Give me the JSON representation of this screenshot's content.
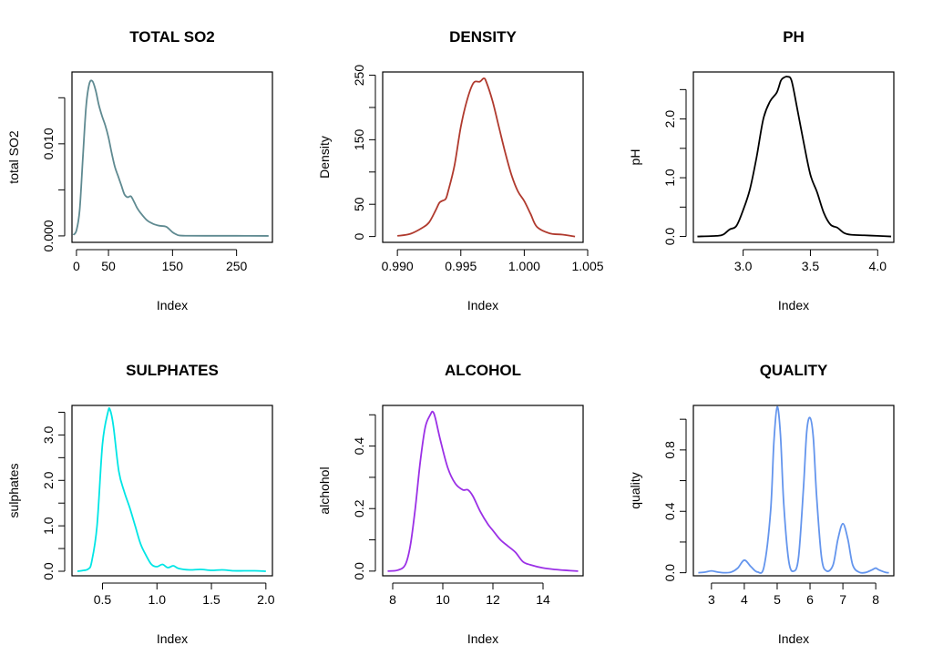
{
  "chart_data": [
    {
      "type": "line",
      "title": "TOTAL SO2",
      "xlabel": "Index",
      "ylabel": "total SO2",
      "color": "#5f8a91",
      "xlim": [
        -7,
        306
      ],
      "ylim": [
        -0.0007,
        0.0178
      ],
      "xticks": [
        0,
        50,
        150,
        250
      ],
      "xtick_labels": [
        "0",
        "50",
        "150",
        "250"
      ],
      "yticks": [
        0,
        0.01
      ],
      "ytick_labels": [
        "0.000",
        "0.010"
      ],
      "yminor": [
        0.005,
        0.015
      ],
      "series": [
        {
          "x": [
            -5,
            0,
            5,
            10,
            15,
            20,
            25,
            30,
            35,
            40,
            45,
            50,
            55,
            60,
            65,
            70,
            75,
            80,
            85,
            90,
            95,
            100,
            110,
            120,
            130,
            140,
            150,
            155,
            160,
            170,
            200,
            250,
            300
          ],
          "y": [
            0.0001,
            0.0006,
            0.0028,
            0.0085,
            0.014,
            0.0165,
            0.0168,
            0.0158,
            0.0142,
            0.013,
            0.012,
            0.0107,
            0.009,
            0.0075,
            0.0065,
            0.0055,
            0.0045,
            0.0042,
            0.0043,
            0.0037,
            0.003,
            0.0025,
            0.0017,
            0.0013,
            0.0011,
            0.001,
            0.0004,
            0.0002,
            5e-05,
            2e-05,
            1e-05,
            1e-05,
            0.0
          ]
        }
      ]
    },
    {
      "type": "line",
      "title": "DENSITY",
      "xlabel": "Index",
      "ylabel": "Density",
      "color": "#b03a2e",
      "xlim": [
        0.98884,
        1.00464
      ],
      "ylim": [
        -9,
        255
      ],
      "xticks": [
        0.99,
        0.995,
        1.0,
        1.005
      ],
      "xtick_labels": [
        "0.990",
        "0.995",
        "1.000",
        "1.005"
      ],
      "yticks": [
        0,
        50,
        150,
        250
      ],
      "ytick_labels": [
        "0",
        "50",
        "150",
        "250"
      ],
      "yminor": [
        100,
        200
      ],
      "series": [
        {
          "x": [
            0.99,
            0.991,
            0.992,
            0.9925,
            0.993,
            0.9933,
            0.9935,
            0.9938,
            0.994,
            0.9945,
            0.995,
            0.9955,
            0.996,
            0.9965,
            0.9968,
            0.997,
            0.9975,
            0.998,
            0.9985,
            0.999,
            0.9995,
            1.0,
            1.0005,
            1.001,
            1.002,
            1.003,
            1.004
          ],
          "y": [
            1,
            4,
            14,
            22,
            40,
            52,
            55,
            58,
            70,
            110,
            170,
            212,
            238,
            240,
            245,
            240,
            210,
            170,
            130,
            95,
            70,
            55,
            35,
            15,
            5,
            3,
            0
          ]
        }
      ]
    },
    {
      "type": "line",
      "title": "PH",
      "xlabel": "Index",
      "ylabel": "pH",
      "color": "#000000",
      "xlim": [
        2.63,
        4.12
      ],
      "ylim": [
        -0.1,
        2.8
      ],
      "xticks": [
        3.0,
        3.5,
        4.0
      ],
      "xtick_labels": [
        "3.0",
        "3.5",
        "4.0"
      ],
      "yticks": [
        0,
        1,
        2
      ],
      "ytick_labels": [
        "0.0",
        "1.0",
        "2.0"
      ],
      "yminor": [
        0.5,
        1.5,
        2.5
      ],
      "series": [
        {
          "x": [
            2.66,
            2.8,
            2.85,
            2.9,
            2.95,
            3.0,
            3.05,
            3.1,
            3.15,
            3.2,
            3.25,
            3.28,
            3.3,
            3.33,
            3.36,
            3.4,
            3.45,
            3.5,
            3.55,
            3.6,
            3.65,
            3.7,
            3.75,
            3.8,
            3.9,
            4.0,
            4.1
          ],
          "y": [
            0,
            0.01,
            0.03,
            0.12,
            0.18,
            0.45,
            0.8,
            1.35,
            2.0,
            2.3,
            2.45,
            2.65,
            2.7,
            2.72,
            2.65,
            2.2,
            1.6,
            1.05,
            0.75,
            0.4,
            0.2,
            0.15,
            0.06,
            0.03,
            0.02,
            0.01,
            0
          ]
        }
      ]
    },
    {
      "type": "line",
      "title": "SULPHATES",
      "xlabel": "Index",
      "ylabel": "sulphates",
      "color": "#00e5e5",
      "xlim": [
        0.22,
        2.06
      ],
      "ylim": [
        -0.1,
        3.65
      ],
      "xticks": [
        0.5,
        1.0,
        1.5,
        2.0
      ],
      "xtick_labels": [
        "0.5",
        "1.0",
        "1.5",
        "2.0"
      ],
      "yticks": [
        0,
        1,
        2,
        3
      ],
      "ytick_labels": [
        "0.0",
        "1.0",
        "2.0",
        "3.0"
      ],
      "yminor": [
        0.5,
        1.5,
        2.5,
        3.5
      ],
      "series": [
        {
          "x": [
            0.27,
            0.33,
            0.37,
            0.4,
            0.45,
            0.5,
            0.55,
            0.57,
            0.6,
            0.65,
            0.7,
            0.75,
            0.8,
            0.85,
            0.9,
            0.95,
            1.0,
            1.05,
            1.1,
            1.15,
            1.2,
            1.3,
            1.4,
            1.5,
            1.6,
            1.7,
            1.8,
            1.9,
            2.0
          ],
          "y": [
            0.0,
            0.02,
            0.05,
            0.2,
            1.0,
            2.8,
            3.5,
            3.55,
            3.2,
            2.2,
            1.75,
            1.4,
            1.0,
            0.6,
            0.35,
            0.15,
            0.1,
            0.15,
            0.08,
            0.12,
            0.06,
            0.03,
            0.04,
            0.02,
            0.03,
            0.01,
            0.01,
            0.01,
            0.0
          ]
        }
      ]
    },
    {
      "type": "line",
      "title": "ALCOHOL",
      "xlabel": "Index",
      "ylabel": "alchohol",
      "color": "#9b30e6",
      "xlim": [
        7.6,
        15.6
      ],
      "ylim": [
        -0.015,
        0.53
      ],
      "xticks": [
        8,
        10,
        12,
        14
      ],
      "xtick_labels": [
        "8",
        "10",
        "12",
        "14"
      ],
      "yticks": [
        0,
        0.2,
        0.4
      ],
      "ytick_labels": [
        "0.0",
        "0.2",
        "0.4"
      ],
      "yminor": [
        0.1,
        0.3,
        0.5
      ],
      "series": [
        {
          "x": [
            7.8,
            8.2,
            8.5,
            8.7,
            8.9,
            9.1,
            9.3,
            9.5,
            9.6,
            9.7,
            9.9,
            10.2,
            10.5,
            10.8,
            11.0,
            11.2,
            11.5,
            11.8,
            12.0,
            12.3,
            12.6,
            12.9,
            13.2,
            13.5,
            14.0,
            14.5,
            15.0,
            15.4
          ],
          "y": [
            0.0,
            0.003,
            0.02,
            0.08,
            0.2,
            0.35,
            0.46,
            0.5,
            0.51,
            0.49,
            0.42,
            0.33,
            0.28,
            0.26,
            0.26,
            0.24,
            0.19,
            0.15,
            0.13,
            0.1,
            0.08,
            0.06,
            0.03,
            0.02,
            0.01,
            0.005,
            0.002,
            0.0
          ]
        }
      ]
    },
    {
      "type": "line",
      "title": "QUALITY",
      "xlabel": "Index",
      "ylabel": "quality",
      "color": "#6495ed",
      "xlim": [
        2.45,
        8.55
      ],
      "ylim": [
        -0.02,
        1.09
      ],
      "xticks": [
        3,
        4,
        5,
        6,
        7,
        8
      ],
      "xtick_labels": [
        "3",
        "4",
        "5",
        "6",
        "7",
        "8"
      ],
      "yticks": [
        0,
        0.4,
        0.8
      ],
      "ytick_labels": [
        "0.0",
        "0.4",
        "0.8"
      ],
      "yminor": [
        0.2,
        0.6,
        1.0
      ],
      "series": [
        {
          "x": [
            2.6,
            2.8,
            3.0,
            3.2,
            3.4,
            3.6,
            3.8,
            4.0,
            4.2,
            4.4,
            4.6,
            4.8,
            4.9,
            5.0,
            5.1,
            5.2,
            5.35,
            5.5,
            5.65,
            5.8,
            5.9,
            6.0,
            6.1,
            6.2,
            6.35,
            6.5,
            6.7,
            6.85,
            7.0,
            7.15,
            7.3,
            7.5,
            7.7,
            7.9,
            8.0,
            8.1,
            8.3,
            8.4
          ],
          "y": [
            0.0,
            0.004,
            0.012,
            0.004,
            0.0,
            0.004,
            0.03,
            0.082,
            0.04,
            0.005,
            0.04,
            0.4,
            0.85,
            1.08,
            0.9,
            0.45,
            0.08,
            0.01,
            0.1,
            0.55,
            0.92,
            1.01,
            0.88,
            0.5,
            0.1,
            0.012,
            0.05,
            0.22,
            0.32,
            0.22,
            0.05,
            0.003,
            0.002,
            0.02,
            0.03,
            0.018,
            0.002,
            0.0
          ]
        }
      ]
    }
  ]
}
